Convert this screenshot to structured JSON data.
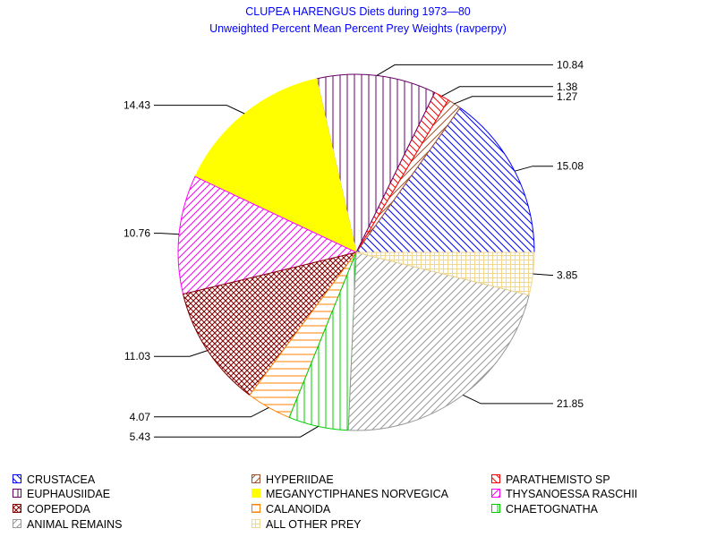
{
  "chart_data": {
    "type": "pie",
    "title": "CLUPEA HARENGUS Diets during 1973—80",
    "subtitle": "Unweighted Percent Mean Percent Prey  Weights (ravperpy)",
    "start": "3 o'clock",
    "direction": "counter-clockwise",
    "slices": [
      {
        "name": "CRUSTACEA",
        "value": 15.08,
        "label": "15.08",
        "color": "#0000ff",
        "pattern": "diag-down"
      },
      {
        "name": "HYPERIIDAE",
        "value": 1.27,
        "label": "1.27",
        "color": "#a0522d",
        "pattern": "diag-up"
      },
      {
        "name": "PARATHEMISTO SP",
        "value": 1.38,
        "label": "1.38",
        "color": "#ff0000",
        "pattern": "diag-down"
      },
      {
        "name": "EUPHAUSIIDAE",
        "value": 10.84,
        "label": "10.84",
        "color": "#660066",
        "pattern": "vertical"
      },
      {
        "name": "MEGANYCTIPHANES NORVEGICA",
        "value": 14.43,
        "label": "14.43",
        "color": "#ffff00",
        "pattern": "solid"
      },
      {
        "name": "THYSANOESSA RASCHII",
        "value": 10.76,
        "label": "10.76",
        "color": "#ff00ff",
        "pattern": "diag-up"
      },
      {
        "name": "COPEPODA",
        "value": 11.03,
        "label": "11.03",
        "color": "#800000",
        "pattern": "crosshatch"
      },
      {
        "name": "CALANOIDA",
        "value": 4.07,
        "label": "4.07",
        "color": "#ff8000",
        "pattern": "horizontal"
      },
      {
        "name": "CHAETOGNATHA",
        "value": 5.43,
        "label": "5.43",
        "color": "#00cc00",
        "pattern": "vertical"
      },
      {
        "name": "ANIMAL REMAINS",
        "value": 21.85,
        "label": "21.85",
        "color": "#999999",
        "pattern": "diag-up"
      },
      {
        "name": "ALL OTHER PREY",
        "value": 3.85,
        "label": "3.85",
        "color": "#f0d890",
        "pattern": "grid"
      }
    ],
    "legend_order": [
      "CRUSTACEA",
      "HYPERIIDAE",
      "PARATHEMISTO SP",
      "EUPHAUSIIDAE",
      "MEGANYCTIPHANES NORVEGICA",
      "THYSANOESSA RASCHII",
      "COPEPODA",
      "CALANOIDA",
      "CHAETOGNATHA",
      "ANIMAL REMAINS",
      "ALL OTHER PREY"
    ],
    "legend_placement": "bottom"
  }
}
